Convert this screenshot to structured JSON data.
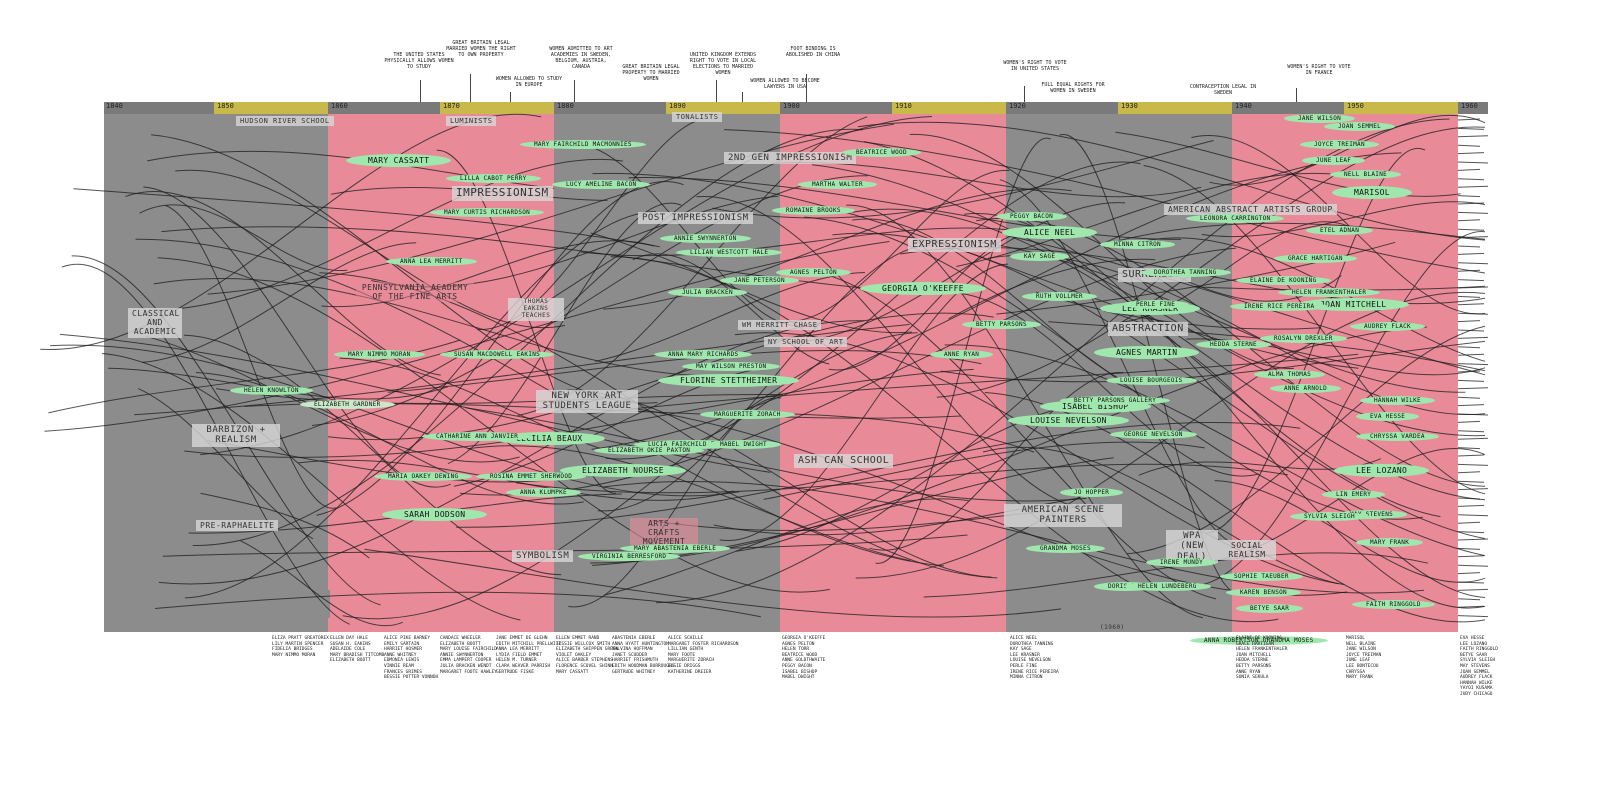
{
  "timeline": {
    "decades": [
      "1840",
      "1850",
      "1860",
      "1870",
      "1880",
      "1890",
      "1900",
      "1910",
      "1920",
      "1930",
      "1940",
      "1950",
      "1960"
    ]
  },
  "events": [
    "THE UNITED STATES PHYSICALLY ALLOWS WOMEN TO STUDY",
    "GREAT BRITAIN LEGAL MARRIED WOMEN THE RIGHT TO OWN PROPERTY",
    "WOMEN ALLOWED TO STUDY IN EUROPE",
    "WOMEN ADMITTED TO ART ACADEMIES IN SWEDEN, BELGIUM, AUSTRIA, CANADA",
    "GREAT BRITAIN LEGAL PROPERTY TO MARRIED WOMEN",
    "UNITED KINGDOM EXTENDS RIGHT TO VOTE IN LOCAL ELECTIONS TO MARRIED WOMEN",
    "WOMEN ALLOWED TO BECOME LAWYERS IN USA",
    "FOOT BINDING IS ABOLISHED IN CHINA",
    "WOMEN'S RIGHT TO VOTE IN UNITED STATES",
    "FULL EQUAL RIGHTS FOR WOMEN IN SWEDEN",
    "CONTRACEPTION LEGAL IN SWEDEN",
    "WOMEN'S RIGHT TO VOTE IN FRANCE"
  ],
  "movements": {
    "hudson": "HUDSON RIVER SCHOOL",
    "luminists": "LUMINISTS",
    "tonalists": "TONALISTS",
    "impressionism": "IMPRESSIONISM",
    "second_gen": "2ND GEN IMPRESSIONISM",
    "post_impressionism": "POST IMPRESSIONISM",
    "classical": "CLASSICAL AND ACADEMIC",
    "penn_academy": "PENNSYLVANIA ACADEMY OF THE FINE ARTS",
    "thomas_eakins": "THOMAS EAKINS TEACHES",
    "chase": "WM MERRITT CHASE",
    "ny_school": "NY SCHOOL OF ART",
    "ny_art_students": "NEW YORK ART STUDENTS LEAGUE",
    "barbizon": "BARBIZON + REALISM",
    "pre_raphaelite": "PRE-RAPHAELITE",
    "symbolism": "SYMBOLISM",
    "arts_crafts": "ARTS + CRAFTS MOVEMENT",
    "ash_can": "ASH CAN SCHOOL",
    "expressionism": "EXPRESSIONISM",
    "surrealism": "SURREALISM",
    "abstraction": "ABSTRACTION",
    "american_abstract": "AMERICAN ABSTRACT ARTISTS GROUP",
    "american_scene": "AMERICAN SCENE PAINTERS",
    "wpa": "WPA (NEW DEAL)",
    "social_realism": "SOCIAL REALISM",
    "year_1960": "(1960)"
  },
  "artists": [
    "MARY CASSATT",
    "LILLA CABOT PERRY",
    "MARY FAIRCHILD MACMONNIES",
    "MARY CURTIS RICHARDSON",
    "ANNA LEA MERRITT",
    "CECILIA BEAUX",
    "ELIZABETH NOURSE",
    "ANNA KLUMPKE",
    "SARAH DODSON",
    "HELEN KNOWLTON",
    "ELIZABETH GARDNER",
    "MARIA OAKEY DEWING",
    "ROSINA EMMET SHERWOOD",
    "MARY NIMMO MORAN",
    "SUSAN MACDOWELL EAKINS",
    "CATHARINE ANN JANVIER",
    "LUCIA FAIRCHILD FULLER",
    "ELIZABETH OKIE PAXTON",
    "LUCY AMELINE BACON",
    "JANE PETERSON",
    "MARTHA WALTER",
    "ROMAINE BROOKS",
    "GEORGIA O'KEEFFE",
    "ANNA MARY RICHARDS",
    "MAY WILSON PRESTON",
    "FLORINE STETTHEIMER",
    "MARGUERITE ZORACH",
    "ALICE NEEL",
    "AGNES MARTIN",
    "LEE KRASNER",
    "LOUISE NEVELSON",
    "ISABEL BISHOP",
    "LOUISE BOURGEOIS",
    "DOROTHEA TANNING",
    "KAY SAGE",
    "HEDDA STERNE",
    "JOAN MITCHELL",
    "HELEN FRANKENTHALER",
    "ELAINE DE KOONING",
    "GRACE HARTIGAN",
    "MARISOL",
    "LEE LOZANO",
    "FAITH RINGGOLD",
    "BETYE SAAR",
    "CHRYSSA VARDEA",
    "EVA HESSE",
    "ANNE RYAN",
    "IRENE RICE PEREIRA",
    "MINNA CITRON",
    "ALMA THOMAS",
    "JANE WILSON",
    "MAY STEVENS",
    "NELL BLAINE",
    "SYLVIA SLEIGH",
    "LIN EMERY",
    "BETTY PARSONS",
    "PEGGY BACON",
    "MABEL DWIGHT",
    "AGNES PELTON",
    "PERLE FINE",
    "RUTH VOLLMER",
    "JO HOPPER",
    "DORIS LEE",
    "GRANDMA MOSES",
    "ANNA ROBERTSON GRANDMA MOSES",
    "MARY ABASTENIA EBERLE",
    "VIRGINIA BERRESFORD",
    "BEATRICE WOOD",
    "HELEN LUNDEBERG",
    "SOPHIE TAEUBER",
    "KAREN BENSON",
    "ANNIE SWYNNERTON",
    "LILIAN WESTCOTT HALE",
    "JULIA BRACKEN",
    "JOAN SEMMEL",
    "JOYCE TREIMAN",
    "JUNE LEAF",
    "ETEL ADNAN",
    "HANNAH WILKE",
    "ANNE ARNOLD",
    "IRENE MUNDY",
    "LEONORA CARRINGTON",
    "ROSALYN DREXLER",
    "BETTY PARSONS GALLERY",
    "AUDREY FLACK",
    "MARY FRANK",
    "GEORGE NEVELSON"
  ],
  "artist_list_columns": [
    "ELIZA PRATT GREATOREX\nLILY MARTIN SPENCER\nFIDELIA BRIDGES\nMARY NIMMO MORAN",
    "ELLEN DAY HALE\nSUSAN H. EAKINS\nADELAIDE COLE\nMARY BRADISH TITCOMB\nELIZABETH BOOTT",
    "ALICE PIKE BARNEY\nEMILY SARTAIN\nHARRIET HOSMER\nANNE WHITNEY\nEDMONIA LEWIS\nVINNIE REAM\nFRANCES GRIMES\nBESSIE POTTER VONNOH",
    "CANDACE WHEELER\nELIZABETH BOOTT\nMARY LOUISE FAIRCHILD\nANNIE SWYNNERTON\nEMMA LAMPERT COOPER\nJULIA BRACKEN WENDT\nMARGARET FOOTE HAWLEY",
    "JANE EMMET DE GLEHN\nEDITH MITCHILL PRELLWITZ\nANNA LEA MERRITT\nLYDIA FIELD EMMET\nHELEN M. TURNER\nCLARA WEAVER PARRISH\nGERTRUDE FISKE",
    "ELLEN EMMET RAND\nJESSIE WILLCOX SMITH\nELIZABETH SHIPPEN GREEN\nVIOLET OAKLEY\nALICE BARBER STEPHENS\nFLORENCE SCOVEL SHINN\nMARY CASSATT",
    "ABASTENIA EBERLE\nANNA HYATT HUNTINGTON\nMALVINA HOFFMAN\nJANET SCUDDER\nHARRIET FRISHMUTH\nEDITH WOODMAN BURROUGHS\nGERTRUDE WHITNEY",
    "ALICE SCHILLE\nMARGARET FOSTER RICHARDSON\nLILLIAN GENTH\nMARY FOOTE\nMARGUERITE ZORACH\nELSIE DRIGGS\nKATHERINE DREIER",
    "GEORGIA O'KEEFFE\nAGNES PELTON\nHELEN TORR\nBEATRICE WOOD\nANNE GOLDTHWAITE\nPEGGY BACON\nISABEL BISHOP\nMABEL DWIGHT",
    "ALICE NEEL\nDOROTHEA TANNING\nKAY SAGE\nLEE KRASNER\nLOUISE NEVELSON\nPERLE FINE\nIRENE RICE PEREIRA\nMINNA CITRON",
    "ELAINE DE KOONING\nGRACE HARTIGAN\nHELEN FRANKENTHALER\nJOAN MITCHELL\nHEDDA STERNE\nBETTY PARSONS\nANNE RYAN\nSONIA SEKULA",
    "MARISOL\nNELL BLAINE\nJANE WILSON\nJOYCE TREIMAN\nJUNE LEAF\nLEE BONTECOU\nCHRYSSA\nMARY FRANK",
    "EVA HESSE\nLEE LOZANO\nFAITH RINGGOLD\nBETYE SAAR\nSYLVIA SLEIGH\nMAY STEVENS\nJOAN SEMMEL\nAUDREY FLACK\nHANNAH WILKE\nYAYOI KUSAMA\nJUDY CHICAGO"
  ]
}
